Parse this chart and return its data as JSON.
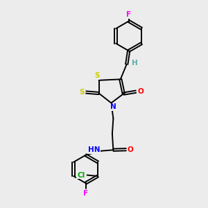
{
  "bg_color": "#ececec",
  "atom_colors": {
    "C": "#000000",
    "H": "#5aacac",
    "N": "#0000ff",
    "O": "#ff0000",
    "S": "#cccc00",
    "F": "#ff00ff",
    "Cl": "#00aa00"
  },
  "bond_color": "#000000",
  "figsize": [
    3.0,
    3.0
  ],
  "dpi": 100
}
